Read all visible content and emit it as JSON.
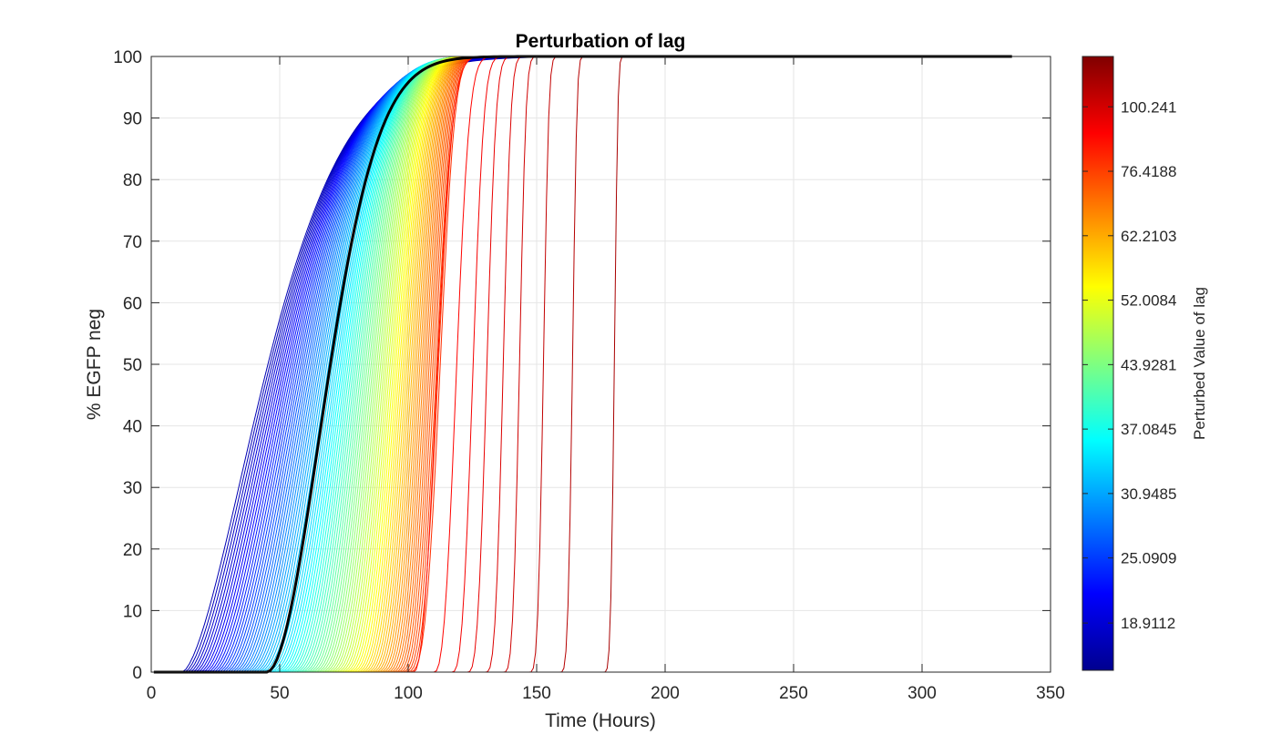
{
  "chart_data": {
    "type": "line",
    "title": "Perturbation of lag",
    "xlabel": "Time (Hours)",
    "ylabel": "% EGFP neg",
    "xlim": [
      0,
      350
    ],
    "ylim": [
      0,
      100
    ],
    "xticks": [
      0,
      50,
      100,
      150,
      200,
      250,
      300,
      350
    ],
    "yticks": [
      0,
      10,
      20,
      30,
      40,
      50,
      60,
      70,
      80,
      90,
      100
    ],
    "grid": true,
    "colormap": "jet",
    "colorbar": {
      "label": "Perturbed Value of lag",
      "position": "right",
      "tick_labels": [
        "18.9112",
        "25.0909",
        "30.9485",
        "37.0845",
        "43.9281",
        "52.0084",
        "62.2103",
        "76.4188",
        "100.241"
      ],
      "tick_fractions": [
        0.077,
        0.183,
        0.288,
        0.393,
        0.498,
        0.603,
        0.708,
        0.813,
        0.918
      ]
    },
    "series_summary": {
      "time_range": [
        1,
        335
      ],
      "blue_onset_min": 12,
      "red_onsets": [
        102,
        110,
        117,
        123,
        130,
        137,
        147,
        159,
        176
      ],
      "highlighted_onset": 45
    },
    "baseline_series_color": "#000000"
  }
}
